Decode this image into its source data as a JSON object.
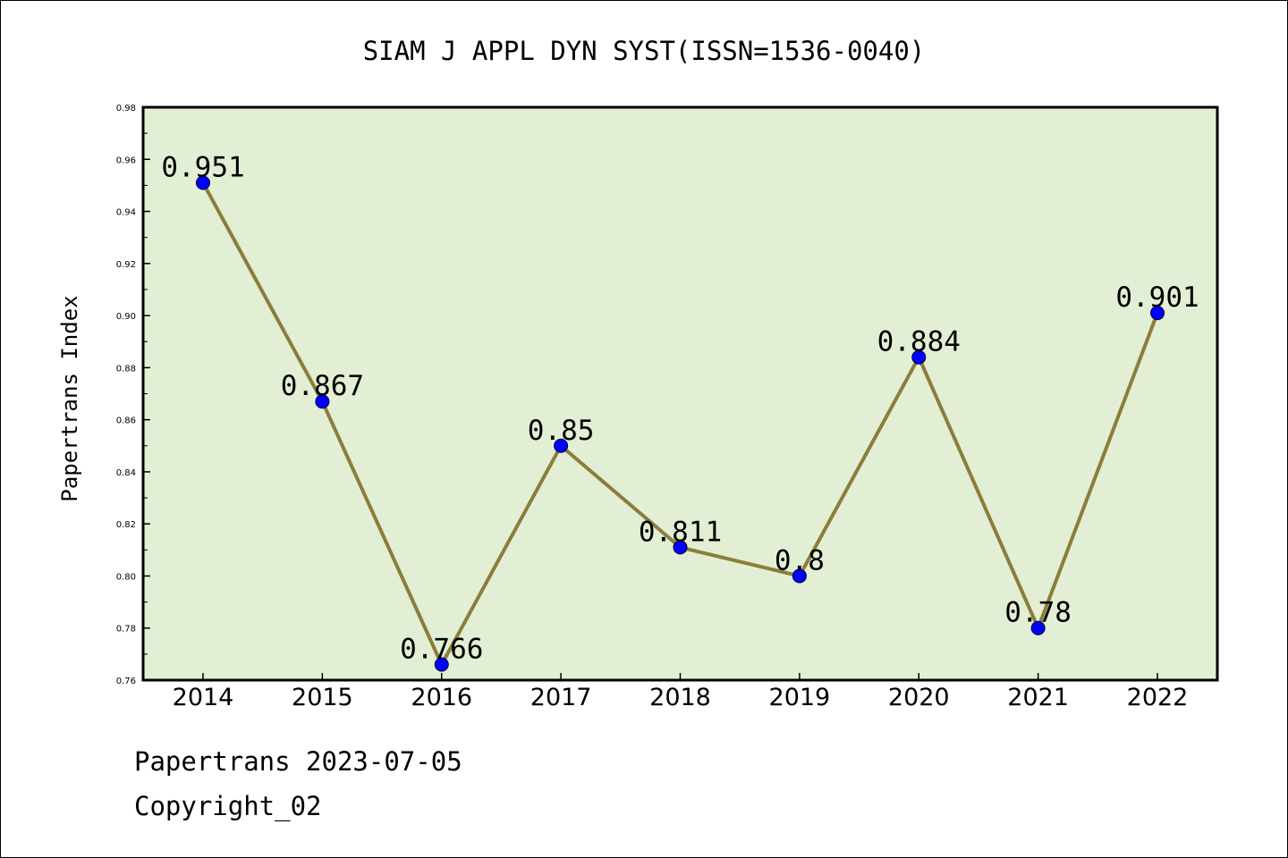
{
  "chart_data": {
    "type": "line",
    "title": "SIAM J APPL DYN SYST(ISSN=1536-0040)",
    "xlabel": "",
    "ylabel": "Papertrans Index",
    "categories": [
      "2014",
      "2015",
      "2016",
      "2017",
      "2018",
      "2019",
      "2020",
      "2021",
      "2022"
    ],
    "values": [
      0.951,
      0.867,
      0.766,
      0.85,
      0.811,
      0.8,
      0.884,
      0.78,
      0.901
    ],
    "data_labels": [
      "0.951",
      "0.867",
      "0.766",
      "0.85",
      "0.811",
      "0.8",
      "0.884",
      "0.78",
      "0.901"
    ],
    "ylim": [
      0.76,
      0.98
    ],
    "yticks": [
      "0.76",
      "0.78",
      "0.80",
      "0.82",
      "0.84",
      "0.86",
      "0.88",
      "0.90",
      "0.92",
      "0.94",
      "0.96",
      "0.98"
    ],
    "grid": false,
    "colors": {
      "plot_background": "#e2efd4",
      "line": "#8b7d3a",
      "marker": "#0000ff"
    }
  },
  "footer": {
    "date_text": "Papertrans 2023-07-05",
    "copyright_text": "Copyright_02"
  }
}
